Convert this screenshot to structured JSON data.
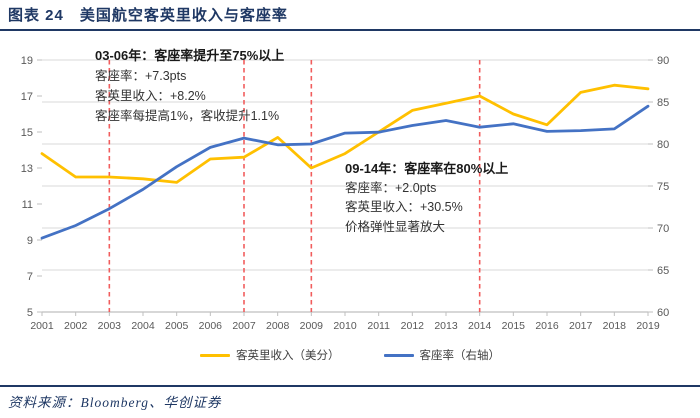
{
  "header": {
    "title": "图表 24　美国航空客英里收入与客座率"
  },
  "chart_data": {
    "type": "line",
    "x": [
      "2001",
      "2002",
      "2003",
      "2004",
      "2005",
      "2006",
      "2007",
      "2008",
      "2009",
      "2010",
      "2011",
      "2012",
      "2013",
      "2014",
      "2015",
      "2016",
      "2017",
      "2018",
      "2019"
    ],
    "series": [
      {
        "name": "客英里收入（美分）",
        "axis": "left",
        "color": "#FFC000",
        "values": [
          13.8,
          12.5,
          12.5,
          12.4,
          12.2,
          13.5,
          13.6,
          14.7,
          13.0,
          13.8,
          15.0,
          16.2,
          16.6,
          17.0,
          16.0,
          15.4,
          17.2,
          17.6,
          17.4
        ]
      },
      {
        "name": "客座率（右轴）",
        "axis": "right",
        "color": "#4472C4",
        "values": [
          68.8,
          70.3,
          72.3,
          74.6,
          77.3,
          79.6,
          80.7,
          79.9,
          80.0,
          81.3,
          81.4,
          82.2,
          82.8,
          82.0,
          82.4,
          81.5,
          81.6,
          81.8,
          84.5
        ]
      }
    ],
    "left_axis": {
      "min": 5,
      "max": 19,
      "ticks": [
        19,
        17,
        15,
        13,
        11,
        9,
        7,
        5
      ]
    },
    "right_axis": {
      "min": 60,
      "max": 90,
      "ticks": [
        90,
        85,
        80,
        75,
        70,
        65,
        60
      ]
    },
    "vlines": {
      "years": [
        "2003",
        "2007",
        "2009",
        "2014"
      ],
      "color": "#F15D5D"
    },
    "grid_color": "#D9D9D9",
    "axis_color": "#BFBFBF",
    "tick_label_color": "#595959",
    "annotations": [
      {
        "title": "03-06年：客座率提升至75%以上",
        "lines": [
          "客座率：+7.3pts",
          "客英里收入：+8.2%",
          "客座率每提高1%，客收提升1.1%"
        ]
      },
      {
        "title": "09-14年：客座率在80%以上",
        "lines": [
          "客座率：+2.0pts",
          "客英里收入：+30.5%",
          "价格弹性显著放大"
        ]
      }
    ]
  },
  "footer": {
    "source": "资料来源：Bloomberg、华创证券"
  }
}
